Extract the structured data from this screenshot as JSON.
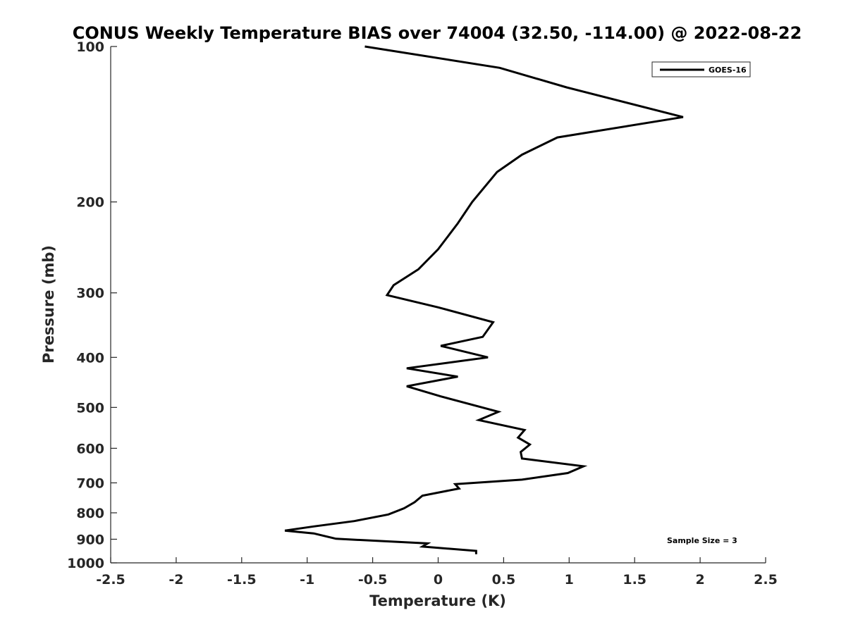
{
  "chart_data": {
    "type": "line",
    "title": "CONUS Weekly Temperature BIAS over 74004 (32.50, -114.00) @ 2022-08-22",
    "xlabel": "Temperature (K)",
    "ylabel": "Pressure (mb)",
    "xlim": [
      -2.5,
      2.5
    ],
    "ylim": [
      1000,
      100
    ],
    "yscale": "log",
    "y_reversed": true,
    "grid": false,
    "legend_position": "top-right",
    "x_ticks": [
      "-2.5",
      "-2",
      "-1.5",
      "-1",
      "-0.5",
      "0",
      "0.5",
      "1",
      "1.5",
      "2",
      "2.5"
    ],
    "y_ticks": [
      "100",
      "200",
      "300",
      "400",
      "500",
      "600",
      "700",
      "800",
      "900",
      "1000"
    ],
    "series": [
      {
        "name": "GOES-16",
        "color": "#000000",
        "points": [
          {
            "x": -0.56,
            "y": 100
          },
          {
            "x": 0.47,
            "y": 110
          },
          {
            "x": 0.98,
            "y": 120
          },
          {
            "x": 1.87,
            "y": 137
          },
          {
            "x": 0.91,
            "y": 150
          },
          {
            "x": 0.64,
            "y": 162
          },
          {
            "x": 0.45,
            "y": 175
          },
          {
            "x": 0.26,
            "y": 200
          },
          {
            "x": 0.15,
            "y": 220
          },
          {
            "x": 0.0,
            "y": 247
          },
          {
            "x": -0.15,
            "y": 270
          },
          {
            "x": -0.34,
            "y": 290
          },
          {
            "x": -0.39,
            "y": 303
          },
          {
            "x": 0.0,
            "y": 320
          },
          {
            "x": 0.42,
            "y": 342
          },
          {
            "x": 0.34,
            "y": 365
          },
          {
            "x": 0.02,
            "y": 380
          },
          {
            "x": 0.38,
            "y": 400
          },
          {
            "x": -0.24,
            "y": 420
          },
          {
            "x": 0.15,
            "y": 436
          },
          {
            "x": -0.24,
            "y": 455
          },
          {
            "x": 0.02,
            "y": 476
          },
          {
            "x": 0.46,
            "y": 510
          },
          {
            "x": 0.31,
            "y": 529
          },
          {
            "x": 0.66,
            "y": 553
          },
          {
            "x": 0.61,
            "y": 572
          },
          {
            "x": 0.7,
            "y": 590
          },
          {
            "x": 0.63,
            "y": 610
          },
          {
            "x": 0.64,
            "y": 628
          },
          {
            "x": 1.11,
            "y": 650
          },
          {
            "x": 0.99,
            "y": 670
          },
          {
            "x": 0.64,
            "y": 690
          },
          {
            "x": 0.13,
            "y": 704
          },
          {
            "x": 0.16,
            "y": 718
          },
          {
            "x": -0.12,
            "y": 741
          },
          {
            "x": -0.18,
            "y": 763
          },
          {
            "x": -0.26,
            "y": 784
          },
          {
            "x": -0.38,
            "y": 806
          },
          {
            "x": -0.64,
            "y": 830
          },
          {
            "x": -0.95,
            "y": 850
          },
          {
            "x": -1.17,
            "y": 866
          },
          {
            "x": -0.95,
            "y": 877
          },
          {
            "x": -0.78,
            "y": 898
          },
          {
            "x": -0.08,
            "y": 917
          },
          {
            "x": -0.12,
            "y": 930
          },
          {
            "x": 0.29,
            "y": 948
          },
          {
            "x": 0.29,
            "y": 962
          }
        ]
      }
    ],
    "annotation": "Sample Size = 3"
  }
}
